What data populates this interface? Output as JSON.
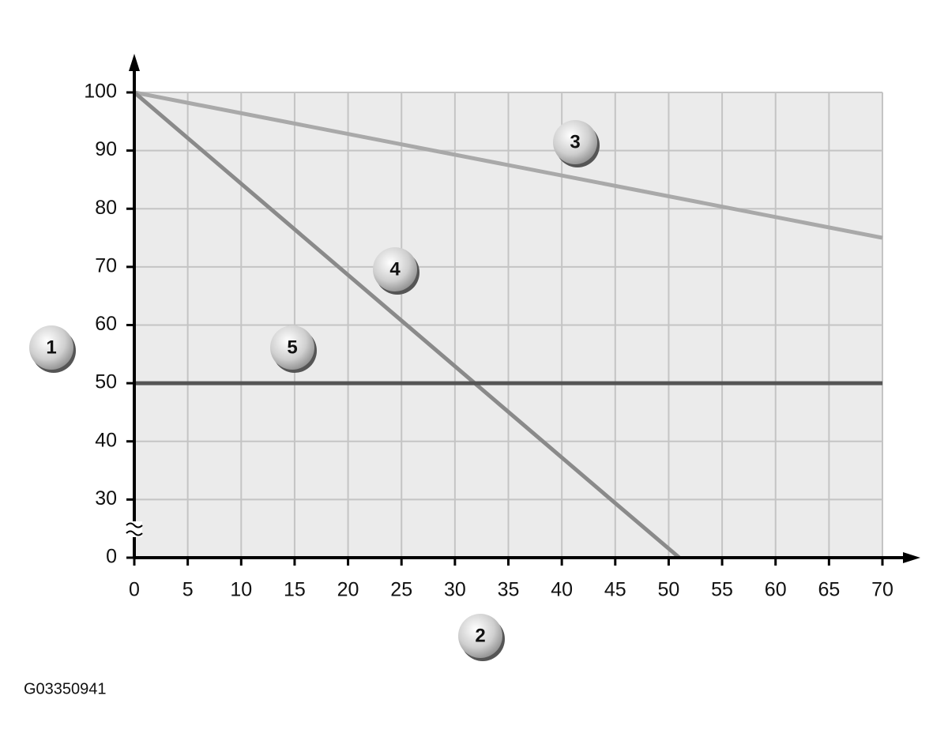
{
  "chart_data": {
    "type": "line",
    "xlim": [
      0,
      70
    ],
    "xticks": [
      0,
      5,
      10,
      15,
      20,
      25,
      30,
      35,
      40,
      45,
      50,
      55,
      60,
      65,
      70
    ],
    "ylim": [
      0,
      100
    ],
    "yticks": [
      0,
      30,
      40,
      50,
      60,
      70,
      80,
      90,
      100
    ],
    "y_break": [
      0,
      30
    ],
    "grid": true,
    "series": [
      {
        "color": "#a9a9a9",
        "x": [
          0,
          70
        ],
        "values": [
          100,
          75
        ]
      },
      {
        "color": "#8a8a8a",
        "x": [
          0,
          44.6,
          51
        ],
        "values": [
          100,
          30,
          0
        ]
      },
      {
        "color": "#555555",
        "x": [
          0,
          70
        ],
        "values": [
          50,
          50
        ]
      }
    ],
    "annotations": [
      "1",
      "2",
      "3",
      "4",
      "5"
    ]
  },
  "figure_id": "G03350941"
}
